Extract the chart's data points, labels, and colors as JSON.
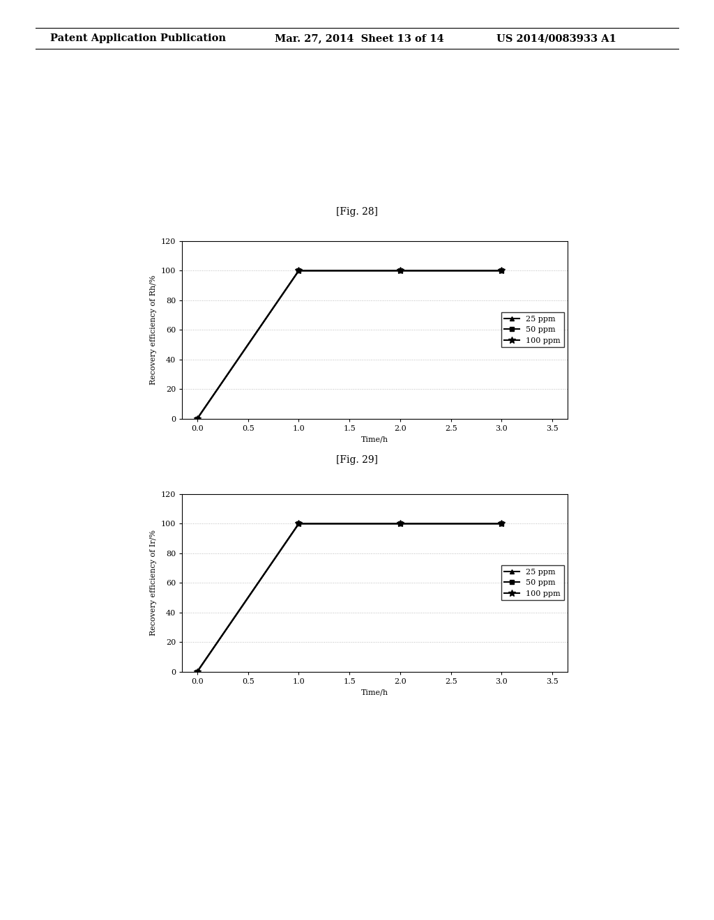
{
  "header_left": "Patent Application Publication",
  "header_center": "Mar. 27, 2014  Sheet 13 of 14",
  "header_right": "US 2014/0083933 A1",
  "fig28_label": "[Fig. 28]",
  "fig29_label": "[Fig. 29]",
  "fig28_ylabel": "Recovery efficiency of Rh/%",
  "fig29_ylabel": "Recovery efficiency of Ir/%",
  "xlabel": "Time/h",
  "x_ticks": [
    0,
    0.5,
    1,
    1.5,
    2,
    2.5,
    3,
    3.5
  ],
  "xlim": [
    -0.15,
    3.65
  ],
  "ylim": [
    0,
    120
  ],
  "y_ticks": [
    0,
    20,
    40,
    60,
    80,
    100,
    120
  ],
  "series": [
    {
      "label": "25 ppm",
      "x": [
        0,
        1,
        2,
        3
      ],
      "y": [
        0,
        100,
        100,
        100
      ],
      "marker": "^",
      "color": "#000000",
      "linewidth": 1.5,
      "markersize": 5
    },
    {
      "label": "50 ppm",
      "x": [
        0,
        1,
        2,
        3
      ],
      "y": [
        0,
        100,
        100,
        100
      ],
      "marker": "s",
      "color": "#000000",
      "linewidth": 1.5,
      "markersize": 5
    },
    {
      "label": "100 ppm",
      "x": [
        0,
        1,
        2,
        3
      ],
      "y": [
        0,
        100,
        100,
        100
      ],
      "marker": "*",
      "color": "#000000",
      "linewidth": 1.5,
      "markersize": 7
    }
  ],
  "background_color": "#ffffff",
  "grid_color": "#bbbbbb",
  "header_fontsize": 10.5,
  "fig_label_fontsize": 10,
  "axis_fontsize": 8,
  "tick_fontsize": 8,
  "legend_fontsize": 8
}
